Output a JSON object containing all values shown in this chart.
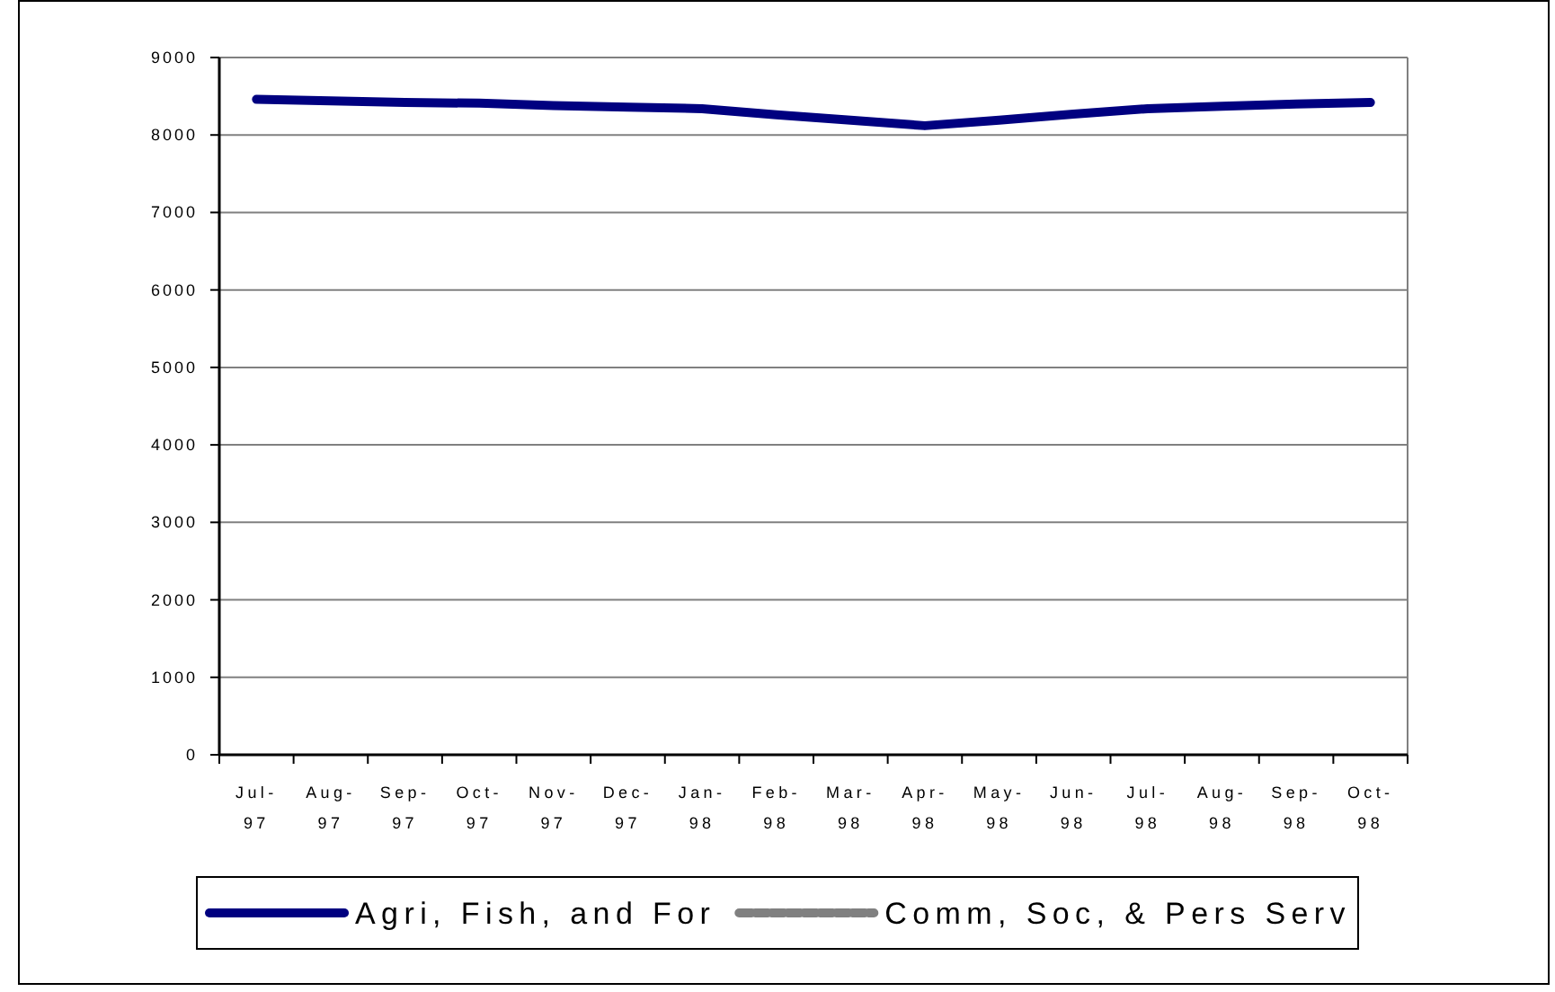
{
  "chart_data": {
    "type": "line",
    "categories": [
      "Jul-97",
      "Aug-97",
      "Sep-97",
      "Oct-97",
      "Nov-97",
      "Dec-97",
      "Jan-98",
      "Feb-98",
      "Mar-98",
      "Apr-98",
      "May-98",
      "Jun-98",
      "Jul-98",
      "Aug-98",
      "Sep-98",
      "Oct-98"
    ],
    "series": [
      {
        "name": "Agri, Fish, and For",
        "color": "#000080",
        "values": [
          8460,
          8440,
          8420,
          8410,
          8380,
          8360,
          8340,
          8260,
          8190,
          8120,
          8190,
          8270,
          8340,
          8370,
          8400,
          8420
        ]
      },
      {
        "name": "Comm, Soc, & Pers Serv",
        "color": "#808080",
        "line_style": "dashed",
        "values": [
          null,
          null,
          null,
          null,
          null,
          null,
          null,
          null,
          null,
          null,
          null,
          null,
          null,
          null,
          null,
          null
        ]
      }
    ],
    "ylim": [
      0,
      9000
    ],
    "yticks": [
      0,
      1000,
      2000,
      3000,
      4000,
      5000,
      6000,
      7000,
      8000,
      9000
    ],
    "grid": "y",
    "legend": "bottom"
  }
}
